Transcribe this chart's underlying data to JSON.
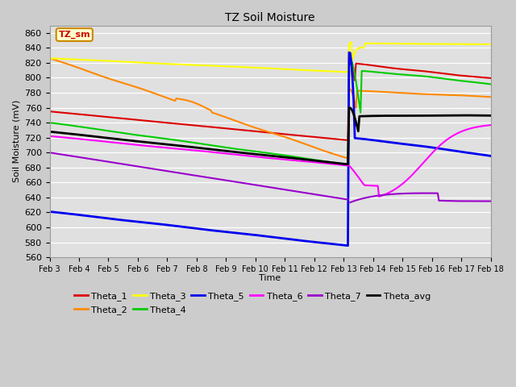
{
  "title": "TZ Soil Moisture",
  "xlabel": "Time",
  "ylabel": "Soil Moisture (mV)",
  "ylim": [
    560,
    870
  ],
  "yticks": [
    560,
    580,
    600,
    620,
    640,
    660,
    680,
    700,
    720,
    740,
    760,
    780,
    800,
    820,
    840,
    860
  ],
  "date_labels": [
    "Feb 3",
    "Feb 4",
    "Feb 5",
    "Feb 6",
    "Feb 7",
    "Feb 8",
    "Feb 9",
    "Feb 10",
    "Feb 11",
    "Feb 12",
    "Feb 13",
    "Feb 14",
    "Feb 15",
    "Feb 16",
    "Feb 17",
    "Feb 18"
  ],
  "n_days": 16,
  "legend_label": "TZ_sm",
  "background_color": "#cccccc",
  "plot_bg_color": "#e0e0e0",
  "series_colors": {
    "Theta_1": "#dd0000",
    "Theta_2": "#ff8800",
    "Theta_3": "#ffff00",
    "Theta_4": "#00cc00",
    "Theta_5": "#0000ee",
    "Theta_6": "#ff00ff",
    "Theta_7": "#9900cc",
    "Theta_avg": "#000000"
  }
}
